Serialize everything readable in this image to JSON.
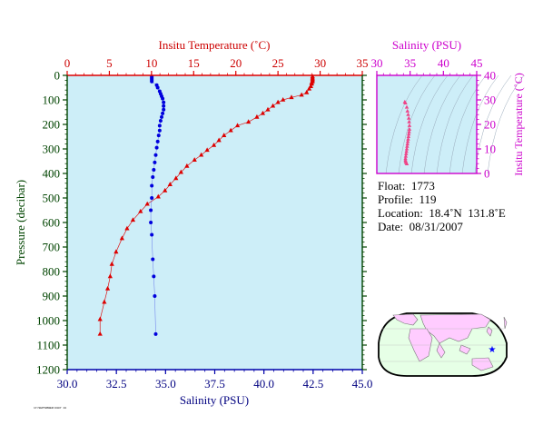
{
  "chart_data": [
    {
      "type": "line",
      "title": "",
      "top_axis": {
        "label": "Insitu Temperature (˚C)",
        "range": [
          0,
          35
        ],
        "ticks": [
          0,
          5,
          10,
          15,
          20,
          25,
          30,
          35
        ],
        "color": "#cc0000"
      },
      "bottom_axis": {
        "label": "Salinity (PSU)",
        "range": [
          30.0,
          45.0
        ],
        "ticks": [
          "30.0",
          "32.5",
          "35.0",
          "37.5",
          "40.0",
          "42.5",
          "45.0"
        ],
        "color": "#000080"
      },
      "left_axis": {
        "label": "Pressure (decibar)",
        "range": [
          0,
          1200
        ],
        "reversed": true,
        "ticks": [
          0,
          100,
          200,
          300,
          400,
          500,
          600,
          700,
          800,
          900,
          1000,
          1100,
          1200
        ],
        "color": "#004400"
      },
      "background": "#cdeef8",
      "series": [
        {
          "variable": "temperature",
          "axis": "top",
          "color": "#dd0000",
          "marker": "triangle",
          "points": [
            [
              29.1,
              5
            ],
            [
              29.1,
              10
            ],
            [
              29.1,
              15
            ],
            [
              29.1,
              20
            ],
            [
              29.1,
              25
            ],
            [
              29.0,
              30
            ],
            [
              29.0,
              35
            ],
            [
              28.9,
              45
            ],
            [
              28.7,
              55
            ],
            [
              28.4,
              70
            ],
            [
              27.8,
              80
            ],
            [
              26.6,
              90
            ],
            [
              25.6,
              100
            ],
            [
              25.0,
              110
            ],
            [
              24.4,
              125
            ],
            [
              23.8,
              140
            ],
            [
              23.2,
              155
            ],
            [
              22.5,
              170
            ],
            [
              21.5,
              190
            ],
            [
              20.2,
              205
            ],
            [
              19.4,
              225
            ],
            [
              18.6,
              245
            ],
            [
              18.0,
              265
            ],
            [
              17.4,
              285
            ],
            [
              16.6,
              305
            ],
            [
              15.9,
              325
            ],
            [
              15.1,
              345
            ],
            [
              14.2,
              370
            ],
            [
              13.5,
              395
            ],
            [
              12.9,
              420
            ],
            [
              12.2,
              445
            ],
            [
              11.6,
              470
            ],
            [
              10.8,
              495
            ],
            [
              9.5,
              525
            ],
            [
              8.7,
              555
            ],
            [
              7.8,
              590
            ],
            [
              7.1,
              625
            ],
            [
              6.5,
              665
            ],
            [
              5.8,
              720
            ],
            [
              5.3,
              770
            ],
            [
              5.1,
              820
            ],
            [
              4.8,
              870
            ],
            [
              4.4,
              925
            ],
            [
              3.9,
              995
            ],
            [
              3.9,
              1055
            ]
          ]
        },
        {
          "variable": "salinity",
          "axis": "bottom",
          "color": "#0000dd",
          "marker": "circle",
          "points": [
            [
              34.3,
              5
            ],
            [
              34.3,
              10
            ],
            [
              34.3,
              15
            ],
            [
              34.3,
              20
            ],
            [
              34.3,
              25
            ],
            [
              34.55,
              40
            ],
            [
              34.6,
              50
            ],
            [
              34.7,
              65
            ],
            [
              34.75,
              75
            ],
            [
              34.8,
              85
            ],
            [
              34.85,
              95
            ],
            [
              34.9,
              110
            ],
            [
              34.9,
              125
            ],
            [
              34.9,
              140
            ],
            [
              34.85,
              155
            ],
            [
              34.8,
              170
            ],
            [
              34.75,
              185
            ],
            [
              34.7,
              205
            ],
            [
              34.7,
              225
            ],
            [
              34.65,
              245
            ],
            [
              34.6,
              270
            ],
            [
              34.55,
              295
            ],
            [
              34.5,
              325
            ],
            [
              34.45,
              355
            ],
            [
              34.4,
              385
            ],
            [
              34.35,
              415
            ],
            [
              34.3,
              450
            ],
            [
              34.3,
              500
            ],
            [
              34.25,
              550
            ],
            [
              34.25,
              600
            ],
            [
              34.3,
              650
            ],
            [
              34.35,
              750
            ],
            [
              34.4,
              820
            ],
            [
              34.45,
              900
            ],
            [
              34.5,
              1055
            ]
          ]
        }
      ]
    },
    {
      "type": "scatter",
      "title": "",
      "top_axis": {
        "label": "Salinity (PSU)",
        "range": [
          30,
          45
        ],
        "ticks": [
          30,
          35,
          40,
          45
        ],
        "color": "#cc00cc"
      },
      "right_axis": {
        "label": "Insitu Temperature (˚C)",
        "range": [
          0,
          40
        ],
        "ticks": [
          0,
          10,
          20,
          30,
          40
        ],
        "color": "#cc00cc"
      },
      "background": "#cdeef8",
      "marker_color": "#ee4488",
      "points": [
        [
          34.2,
          29.1
        ],
        [
          34.3,
          28.7
        ],
        [
          34.5,
          27.0
        ],
        [
          34.6,
          25.4
        ],
        [
          34.7,
          24.0
        ],
        [
          34.8,
          22.5
        ],
        [
          34.85,
          21.0
        ],
        [
          34.9,
          19.5
        ],
        [
          34.9,
          18.0
        ],
        [
          34.85,
          17.0
        ],
        [
          34.8,
          16.0
        ],
        [
          34.75,
          15.0
        ],
        [
          34.7,
          14.0
        ],
        [
          34.65,
          13.0
        ],
        [
          34.6,
          12.0
        ],
        [
          34.55,
          11.0
        ],
        [
          34.5,
          10.0
        ],
        [
          34.45,
          9.0
        ],
        [
          34.4,
          8.0
        ],
        [
          34.35,
          7.0
        ],
        [
          34.3,
          6.0
        ],
        [
          34.3,
          5.3
        ],
        [
          34.35,
          4.8
        ],
        [
          34.4,
          4.4
        ],
        [
          34.5,
          3.9
        ]
      ]
    }
  ],
  "info": {
    "float_line": "Float:  1773",
    "profile_line": "Profile:  119",
    "location_line": "Location:  18.4˚N  131.8˚E",
    "date_line": "Date:  08/31/2007"
  },
  "map": {
    "land_color": "#ffccff",
    "ocean_color": "#e6ffe6",
    "marker_color": "#0000ff",
    "marker_lon": 131.8,
    "marker_lat": 18.4
  },
  "stamp": "17/SEPTEMBER/2007 10"
}
